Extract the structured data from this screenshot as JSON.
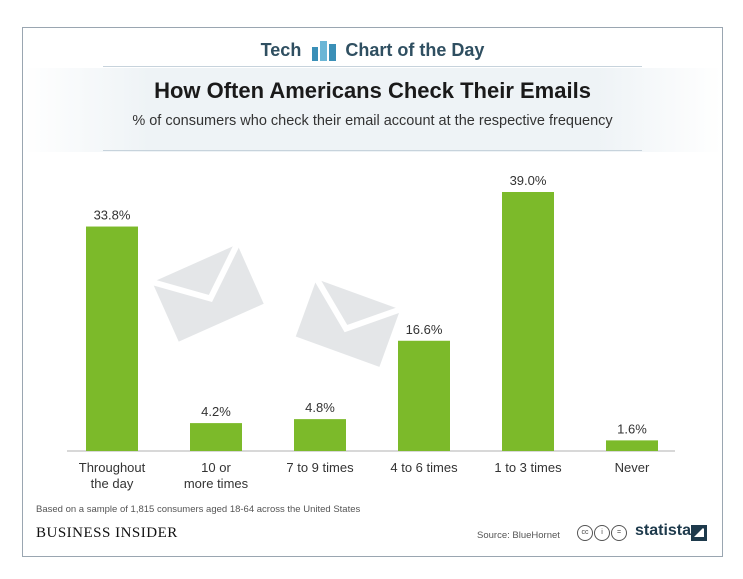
{
  "header": {
    "left_label": "Tech",
    "right_label": "Chart of the Day"
  },
  "title": "How Often Americans Check Their Emails",
  "subtitle": "% of consumers who check their email account at the respective frequency",
  "footnote": "Based on a sample of 1,815 consumers aged 18-64 across the United States",
  "brand": "BUSINESS INSIDER",
  "source": "Source: BlueHornet",
  "statista": "statista",
  "colors": {
    "bar": "#7cba2a",
    "accent": "#2f4f61"
  },
  "chart_data": {
    "type": "bar",
    "categories": [
      "Throughout the day",
      "10 or more times",
      "7 to 9 times",
      "4 to 6 times",
      "1 to 3 times",
      "Never"
    ],
    "category_lines": [
      [
        "Throughout",
        "the day"
      ],
      [
        "10 or",
        "more times"
      ],
      [
        "7 to 9 times"
      ],
      [
        "4 to 6 times"
      ],
      [
        "1 to 3 times"
      ],
      [
        "Never"
      ]
    ],
    "values": [
      33.8,
      4.2,
      4.8,
      16.6,
      39.0,
      1.6
    ],
    "value_labels": [
      "33.8%",
      "4.2%",
      "4.8%",
      "16.6%",
      "39.0%",
      "1.6%"
    ],
    "ylim": [
      0,
      39.0
    ],
    "grid": false,
    "title": "How Often Americans Check Their Emails",
    "xlabel": "",
    "ylabel": ""
  }
}
